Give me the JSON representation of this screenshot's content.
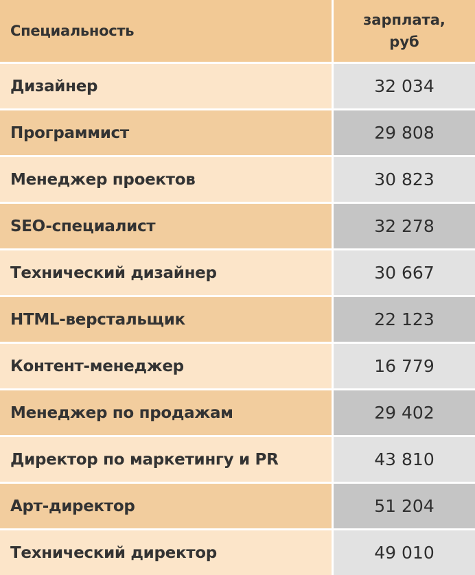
{
  "header": {
    "specialty": "Специальность",
    "salary_line1": "зарплата,",
    "salary_line2": "руб"
  },
  "rows": [
    {
      "specialty": "Дизайнер",
      "salary": "32 034"
    },
    {
      "specialty": "Программист",
      "salary": "29 808"
    },
    {
      "specialty": "Менеджер проектов",
      "salary": "30 823"
    },
    {
      "specialty": "SEO-специалист",
      "salary": "32 278"
    },
    {
      "specialty": "Технический дизайнер",
      "salary": "30 667"
    },
    {
      "specialty": "HTML-верстальщик",
      "salary": "22 123"
    },
    {
      "specialty": "Контент-менеджер",
      "salary": "16 779"
    },
    {
      "specialty": "Менеджер по продажам",
      "salary": "29 402"
    },
    {
      "specialty": "Директор по маркетингу и PR",
      "salary": "43 810"
    },
    {
      "specialty": "Арт-директор",
      "salary": "51 204"
    },
    {
      "specialty": "Технический директор",
      "salary": "49 010"
    }
  ],
  "colors": {
    "header_bg": "#f2c995",
    "row_left_light": "#fce5c9",
    "row_left_dark": "#f2cd9e",
    "row_right_light": "#e2e2e2",
    "row_right_dark": "#c5c5c5"
  }
}
